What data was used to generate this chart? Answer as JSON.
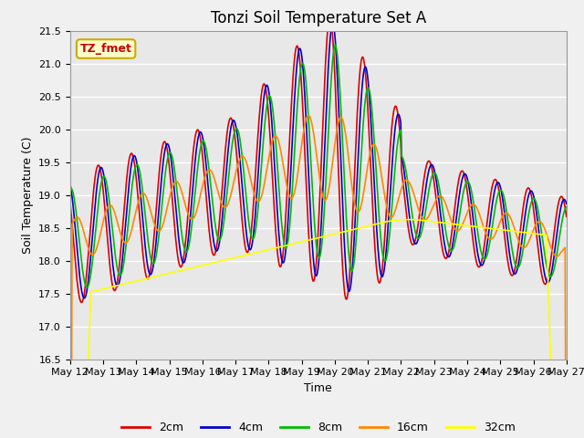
{
  "title": "Tonzi Soil Temperature Set A",
  "xlabel": "Time",
  "ylabel": "Soil Temperature (C)",
  "ylim": [
    16.5,
    21.5
  ],
  "annotation_text": "TZ_fmet",
  "annotation_bg": "#ffffcc",
  "annotation_border": "#ccaa00",
  "colors": {
    "2cm": "#dd0000",
    "4cm": "#0000cc",
    "8cm": "#00bb00",
    "16cm": "#ff8800",
    "32cm": "#ffff00"
  },
  "legend_labels": [
    "2cm",
    "4cm",
    "8cm",
    "16cm",
    "32cm"
  ],
  "x_tick_labels": [
    "May 12",
    "May 13",
    "May 14",
    "May 15",
    "May 16",
    "May 17",
    "May 18",
    "May 19",
    "May 20",
    "May 21",
    "May 22",
    "May 23",
    "May 24",
    "May 25",
    "May 26",
    "May 27"
  ],
  "background_color": "#e8e8e8",
  "plot_bg": "#e8e8e8",
  "fig_bg": "#f0f0f0",
  "grid_color": "#ffffff",
  "line_width": 1.2,
  "title_fontsize": 12,
  "label_fontsize": 9,
  "tick_fontsize": 8,
  "legend_fontsize": 9,
  "yticks": [
    16.5,
    17.0,
    17.5,
    18.0,
    18.5,
    19.0,
    19.5,
    20.0,
    20.5,
    21.0,
    21.5
  ]
}
